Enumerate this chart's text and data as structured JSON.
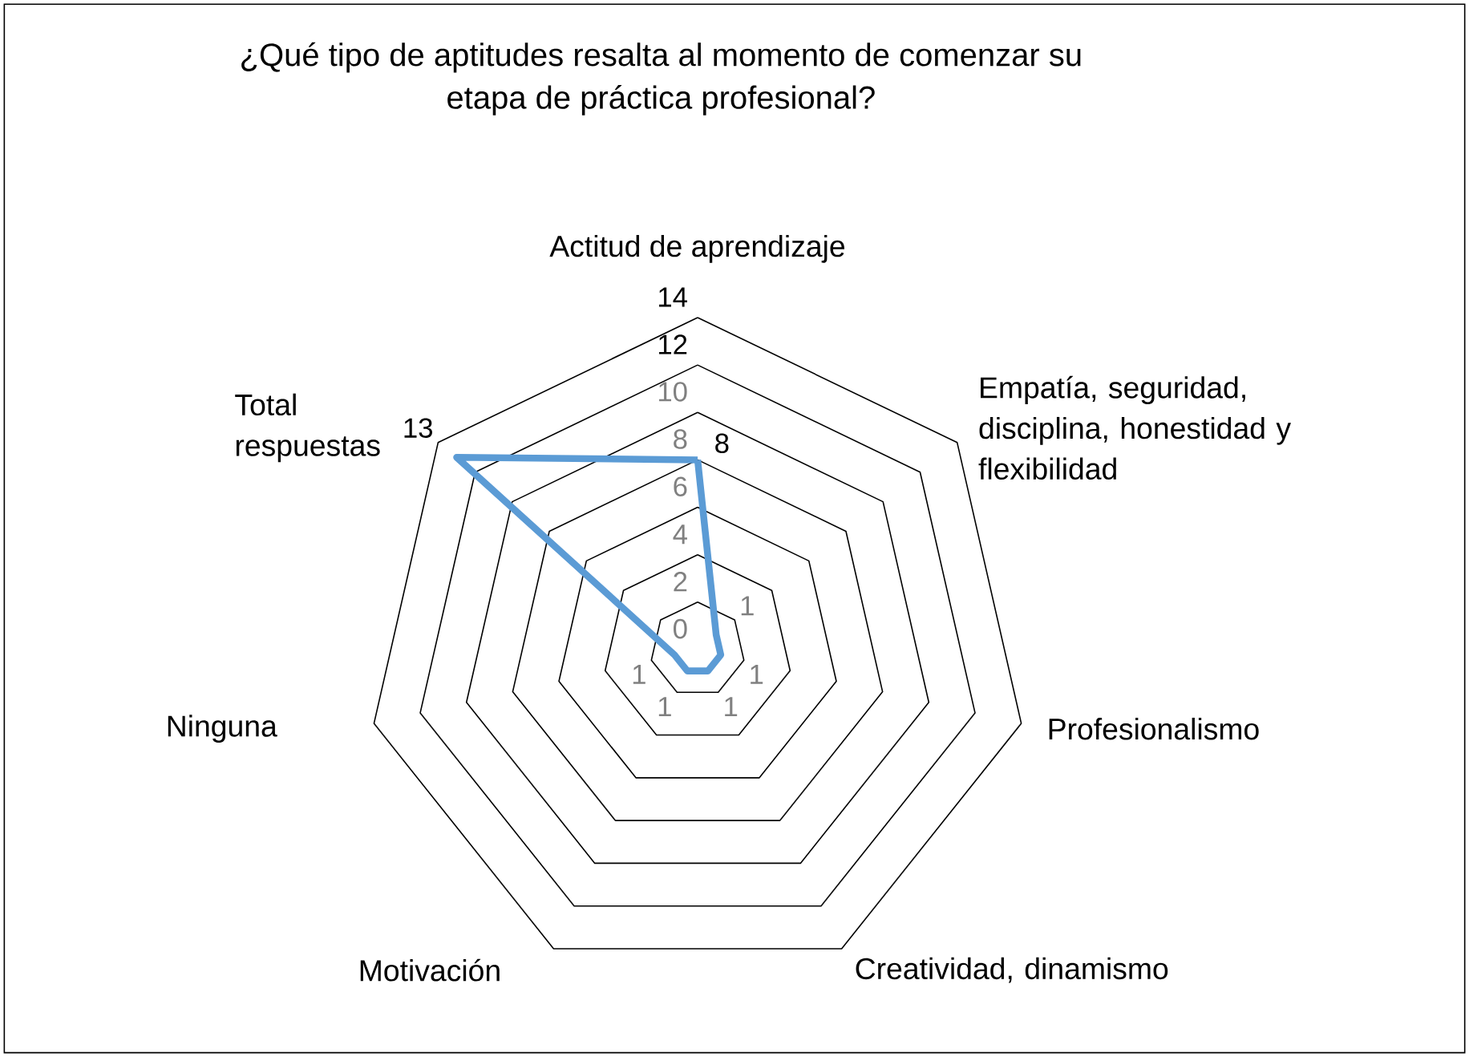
{
  "chart_data": {
    "type": "radar",
    "title": "¿Qué tipo de aptitudes resalta al momento de comenzar su etapa de práctica profesional?",
    "categories": [
      "Actitud de aprendizaje",
      "Empatía, seguridad, disciplina, honestidad y flexibilidad",
      "Profesionalismo",
      "Creatividad, dinamismo",
      "Motivación",
      "Ninguna",
      "Total respuestas"
    ],
    "series": [
      {
        "color": "#5b9bd5",
        "values": [
          8,
          1,
          1,
          1,
          1,
          1,
          13
        ]
      }
    ],
    "ylim": [
      0,
      14
    ],
    "yticks": [
      0,
      2,
      4,
      6,
      8,
      10,
      12,
      14
    ],
    "data_labels": true
  }
}
